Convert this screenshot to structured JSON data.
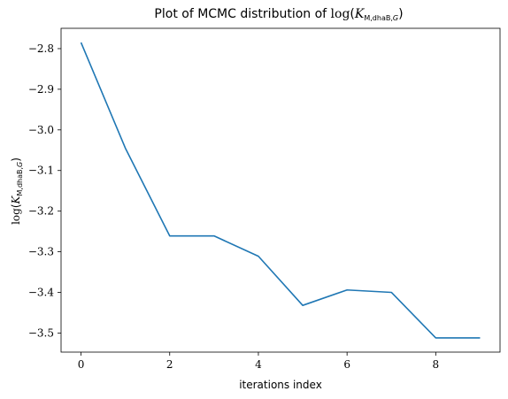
{
  "chart_data": {
    "type": "line",
    "title": {
      "prefix": "Plot of MCMC distribution of ",
      "func": "log",
      "var": "K",
      "subscript_main": "M,dhaB,",
      "subscript_italic": "G"
    },
    "xlabel": "iterations index",
    "ylabel": {
      "func": "log",
      "var": "K",
      "subscript_main": "M,dhaB,",
      "subscript_italic": "G"
    },
    "xlim": [
      -0.45,
      9.45
    ],
    "ylim": [
      -3.547,
      -2.75
    ],
    "xticks": [
      0,
      2,
      4,
      6,
      8
    ],
    "yticks": [
      -2.8,
      -2.9,
      -3.0,
      -3.1,
      -3.2,
      -3.3,
      -3.4,
      -3.5
    ],
    "ytick_labels": [
      "−2.8",
      "−2.9",
      "−3.0",
      "−3.1",
      "−3.2",
      "−3.3",
      "−3.4",
      "−3.5"
    ],
    "grid": false,
    "series": [
      {
        "color": "#1f77b4",
        "x": [
          0,
          1,
          2,
          3,
          4,
          5,
          6,
          7,
          8,
          9
        ],
        "y": [
          -2.785,
          -3.045,
          -3.261,
          -3.261,
          -3.311,
          -3.432,
          -3.394,
          -3.4,
          -3.512,
          -3.512
        ]
      }
    ]
  }
}
